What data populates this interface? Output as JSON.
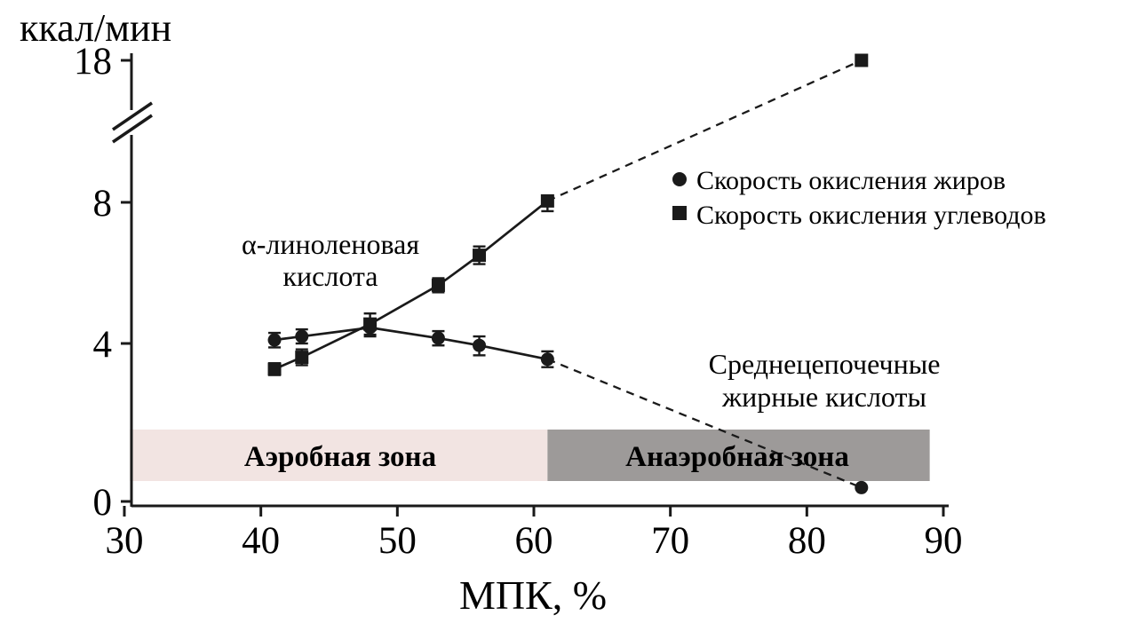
{
  "chart_data": {
    "type": "line",
    "title": "",
    "ylabel": "ккал/мин",
    "xlabel": "МПК, %",
    "xlim": [
      30,
      90
    ],
    "x_ticks": [
      30,
      40,
      50,
      60,
      70,
      80,
      90
    ],
    "y_ticks": [
      0,
      4,
      8,
      18
    ],
    "y_axis_break": {
      "between": [
        8,
        18
      ]
    },
    "grid": false,
    "legend_position": "top-right",
    "legend": [
      {
        "marker": "circle",
        "label": "Скорость окисления жиров"
      },
      {
        "marker": "square",
        "label": "Скорость окисления углеводов"
      }
    ],
    "series": [
      {
        "name": "Скорость окисления жиров",
        "marker": "circle",
        "line_style": "solid-then-dashed",
        "points": [
          {
            "x": 41,
            "y": 4.1,
            "err": 0.2
          },
          {
            "x": 43,
            "y": 4.2,
            "err": 0.2
          },
          {
            "x": 48,
            "y": 4.45,
            "err": 0.25
          },
          {
            "x": 53,
            "y": 4.15,
            "err": 0.2
          },
          {
            "x": 56,
            "y": 3.95,
            "err": 0.25
          },
          {
            "x": 61,
            "y": 3.6,
            "err": 0.2
          }
        ],
        "dashed_extension": {
          "x": 84,
          "y": 0.35,
          "err": 0
        }
      },
      {
        "name": "Скорость окисления углеводов",
        "marker": "square",
        "line_style": "solid-then-dashed",
        "points": [
          {
            "x": 41,
            "y": 3.35,
            "err": 0.15
          },
          {
            "x": 43,
            "y": 3.65,
            "err": 0.2
          },
          {
            "x": 48,
            "y": 4.55,
            "err": 0.3
          },
          {
            "x": 53,
            "y": 5.65,
            "err": 0.2
          },
          {
            "x": 56,
            "y": 6.5,
            "err": 0.25
          },
          {
            "x": 61,
            "y": 8.1,
            "err": 0.35
          }
        ],
        "dashed_extension": {
          "x": 84,
          "y": 18,
          "err": 0
        }
      }
    ],
    "zones": [
      {
        "label": "Аэробная зона",
        "x_start": 30.4,
        "x_end": 61,
        "color": "#f2e4e2"
      },
      {
        "label": "Анаэробная зона",
        "x_start": 61,
        "x_end": 89,
        "color": "#9d9a99"
      }
    ],
    "annotations": [
      {
        "target": "fat-oxidation-curve",
        "lines": [
          "α-линоленовая",
          "кислота"
        ]
      },
      {
        "target": "fat-oxidation-dashed-curve",
        "lines": [
          "Среднецепочечные",
          "жирные кислоты"
        ]
      }
    ]
  },
  "colors": {
    "line": "#1a1a1a",
    "text": "#000000",
    "background": "#ffffff"
  }
}
